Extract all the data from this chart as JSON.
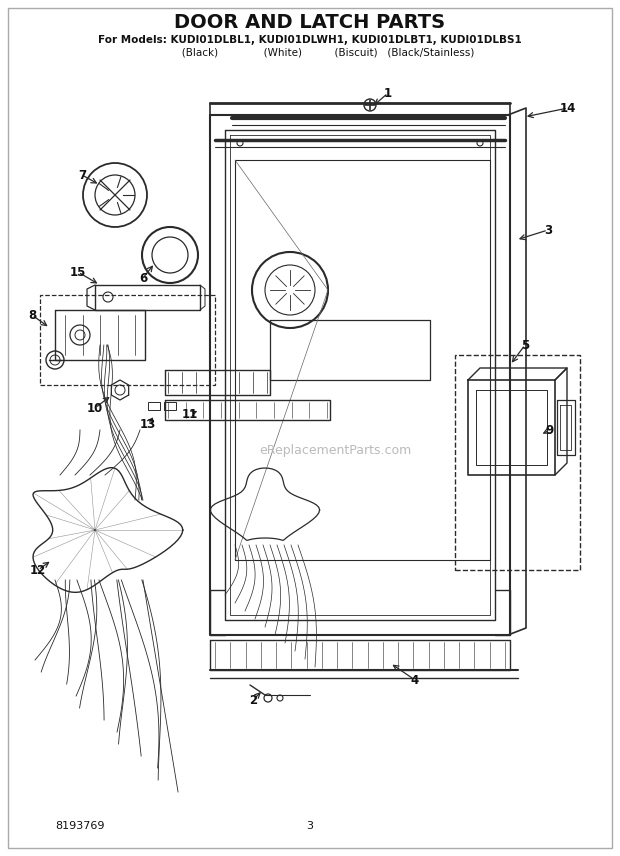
{
  "title": "DOOR AND LATCH PARTS",
  "subtitle_line1": "For Models: KUDI01DLBL1, KUDI01DLWH1, KUDI01DLBT1, KUDI01DLBS1",
  "subtitle_line2": "           (Black)              (White)          (Biscuit)   (Black/Stainless)",
  "watermark": "eReplacementParts.com",
  "doc_number": "8193769",
  "page_number": "3",
  "bg": "#ffffff",
  "lc": "#2a2a2a",
  "tc": "#111111"
}
